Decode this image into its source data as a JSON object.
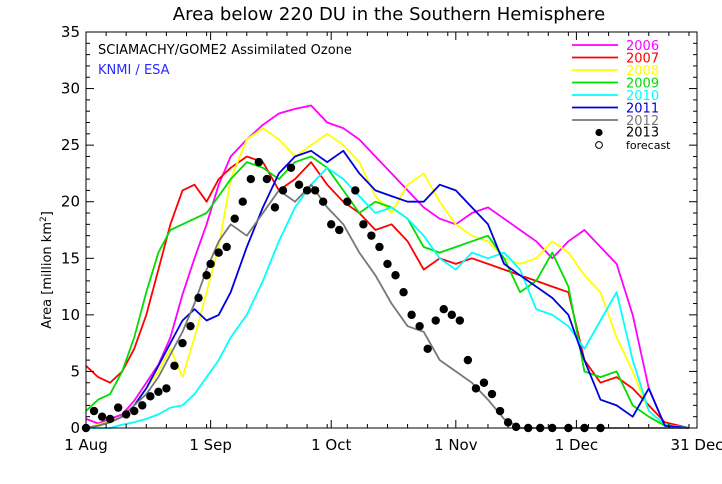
{
  "chart_data": {
    "type": "line",
    "title": "Area below 220 DU in the Southern Hemisphere",
    "ylabel": "Area [million km²]",
    "ylabel_main": "Area ",
    "ylabel_unit": "[million km",
    "ylabel_sup": "2",
    "ylabel_close": "]",
    "xlabel": "",
    "x_unit": "day of year",
    "xlim": [
      "1 Aug",
      "31 Dec"
    ],
    "ylim": [
      0,
      35
    ],
    "y_ticks": [
      "0",
      "5",
      "10",
      "15",
      "20",
      "25",
      "30",
      "35"
    ],
    "x_ticks": [
      "1 Aug",
      "1 Sep",
      "1 Oct",
      "1 Nov",
      "1 Dec",
      "31 Dec"
    ],
    "x_tick_days": [
      0,
      31,
      61,
      92,
      122,
      152
    ],
    "grid": false,
    "legend_position": "top-right",
    "annotations": [
      {
        "text": "SCIAMACHY/GOME2 Assimilated Ozone",
        "color": "#000000"
      },
      {
        "text": "KNMI / ESA",
        "color": "#2a2aff"
      }
    ],
    "series": [
      {
        "name": "2006",
        "color": "#ff00ff",
        "x": [
          0,
          3,
          6,
          9,
          12,
          15,
          18,
          21,
          24,
          27,
          30,
          33,
          36,
          40,
          44,
          48,
          52,
          56,
          60,
          64,
          68,
          72,
          76,
          80,
          84,
          88,
          92,
          96,
          100,
          104,
          108,
          112,
          116,
          120,
          124,
          128,
          132,
          136,
          140,
          144,
          150
        ],
        "y": [
          0.8,
          0.4,
          0.8,
          1.2,
          2.4,
          4.0,
          5.6,
          8.0,
          11.8,
          15.0,
          18.0,
          21.5,
          24.0,
          25.5,
          26.8,
          27.8,
          28.2,
          28.5,
          27.0,
          26.5,
          25.5,
          24.0,
          22.5,
          21.0,
          19.5,
          18.5,
          18.0,
          19.0,
          19.5,
          18.5,
          17.5,
          16.5,
          15.0,
          16.5,
          17.5,
          16.0,
          14.5,
          10.0,
          3.5,
          0.2,
          0.0
        ]
      },
      {
        "name": "2007",
        "color": "#ff0000",
        "x": [
          0,
          3,
          6,
          9,
          12,
          15,
          18,
          21,
          24,
          27,
          30,
          33,
          36,
          40,
          44,
          48,
          52,
          56,
          60,
          64,
          68,
          72,
          76,
          80,
          84,
          88,
          92,
          96,
          100,
          104,
          108,
          112,
          116,
          120,
          124,
          128,
          132,
          136,
          140,
          144,
          150
        ],
        "y": [
          5.5,
          4.5,
          4.0,
          5.0,
          7.0,
          10.0,
          14.0,
          18.0,
          21.0,
          21.5,
          20.0,
          22.0,
          23.0,
          24.0,
          23.5,
          21.0,
          22.0,
          23.5,
          21.5,
          20.0,
          19.0,
          17.5,
          18.0,
          16.5,
          14.0,
          15.0,
          14.5,
          15.0,
          14.5,
          14.0,
          13.5,
          13.0,
          12.5,
          12.0,
          6.0,
          4.0,
          4.5,
          3.5,
          2.0,
          0.5,
          0.0
        ]
      },
      {
        "name": "2008",
        "color": "#ffff00",
        "x": [
          0,
          3,
          6,
          9,
          12,
          15,
          18,
          21,
          24,
          27,
          30,
          33,
          36,
          40,
          44,
          48,
          52,
          56,
          60,
          64,
          68,
          72,
          76,
          80,
          84,
          88,
          92,
          96,
          100,
          104,
          108,
          112,
          116,
          120,
          124,
          128,
          132,
          136,
          140,
          144,
          150
        ],
        "y": [
          0.0,
          0.3,
          0.6,
          1.0,
          2.0,
          3.5,
          5.0,
          7.0,
          4.5,
          8.0,
          12.0,
          16.0,
          22.0,
          25.5,
          26.5,
          25.5,
          24.0,
          25.0,
          26.0,
          25.0,
          23.5,
          20.5,
          19.0,
          21.5,
          22.5,
          20.0,
          18.0,
          17.0,
          16.5,
          15.0,
          14.5,
          15.0,
          16.5,
          15.5,
          13.5,
          12.0,
          8.0,
          5.0,
          1.5,
          0.3,
          0.0
        ]
      },
      {
        "name": "2009",
        "color": "#00dd00",
        "x": [
          0,
          3,
          6,
          9,
          12,
          15,
          18,
          21,
          24,
          27,
          30,
          33,
          36,
          40,
          44,
          48,
          52,
          56,
          60,
          64,
          68,
          72,
          76,
          80,
          84,
          88,
          92,
          96,
          100,
          104,
          108,
          112,
          116,
          120,
          124,
          128,
          132,
          136,
          140,
          144,
          150
        ],
        "y": [
          1.5,
          2.5,
          3.0,
          5.0,
          8.0,
          12.0,
          15.5,
          17.5,
          18.0,
          18.5,
          19.0,
          20.5,
          22.0,
          23.5,
          23.0,
          22.0,
          23.5,
          24.0,
          23.0,
          21.0,
          19.0,
          20.0,
          19.5,
          18.5,
          16.0,
          15.5,
          16.0,
          16.5,
          17.0,
          15.0,
          12.0,
          13.0,
          15.5,
          12.5,
          5.0,
          4.5,
          5.0,
          2.0,
          1.0,
          0.2,
          0.0
        ]
      },
      {
        "name": "2010",
        "color": "#00ffff",
        "x": [
          0,
          3,
          6,
          9,
          12,
          15,
          18,
          21,
          24,
          27,
          30,
          33,
          36,
          40,
          44,
          48,
          52,
          56,
          60,
          64,
          68,
          72,
          76,
          80,
          84,
          88,
          92,
          96,
          100,
          104,
          108,
          112,
          116,
          120,
          124,
          128,
          132,
          136,
          140,
          144,
          150
        ],
        "y": [
          0.0,
          0.0,
          0.0,
          0.3,
          0.5,
          0.8,
          1.2,
          1.8,
          2.0,
          3.0,
          4.5,
          6.0,
          8.0,
          10.0,
          13.0,
          16.5,
          19.5,
          21.5,
          23.0,
          22.0,
          20.5,
          19.0,
          19.5,
          18.5,
          17.0,
          15.0,
          14.0,
          15.5,
          15.0,
          15.5,
          14.0,
          10.5,
          10.0,
          9.0,
          7.0,
          9.5,
          12.0,
          6.0,
          1.5,
          0.3,
          0.0
        ]
      },
      {
        "name": "2011",
        "color": "#0000dd",
        "x": [
          0,
          3,
          6,
          9,
          12,
          15,
          18,
          21,
          24,
          27,
          30,
          33,
          36,
          40,
          44,
          48,
          52,
          56,
          60,
          64,
          68,
          72,
          76,
          80,
          84,
          88,
          92,
          96,
          100,
          104,
          108,
          112,
          116,
          120,
          124,
          128,
          132,
          136,
          140,
          144,
          150
        ],
        "y": [
          0.0,
          0.2,
          0.5,
          1.0,
          2.0,
          3.5,
          5.5,
          7.5,
          9.5,
          10.5,
          9.5,
          10.0,
          12.0,
          16.0,
          19.5,
          22.5,
          24.0,
          24.5,
          23.5,
          24.5,
          22.5,
          21.0,
          20.5,
          20.0,
          20.0,
          21.5,
          21.0,
          19.5,
          18.0,
          14.5,
          13.5,
          12.5,
          11.5,
          10.0,
          6.0,
          2.5,
          2.0,
          1.0,
          3.5,
          0.2,
          0.0
        ]
      },
      {
        "name": "2012",
        "color": "#777777",
        "x": [
          0,
          3,
          6,
          9,
          12,
          15,
          18,
          21,
          24,
          27,
          30,
          33,
          36,
          40,
          44,
          48,
          52,
          56,
          60,
          64,
          68,
          72,
          76,
          80,
          84,
          88,
          92,
          96,
          100,
          104,
          108,
          150
        ],
        "y": [
          0.0,
          0.2,
          0.5,
          1.0,
          2.0,
          3.0,
          4.5,
          6.5,
          8.5,
          11.0,
          14.0,
          16.5,
          18.0,
          17.0,
          19.0,
          21.0,
          20.0,
          21.5,
          19.5,
          18.0,
          15.5,
          13.5,
          11.0,
          9.0,
          8.5,
          6.0,
          5.0,
          4.0,
          2.5,
          0.8,
          0.0,
          0.0
        ]
      },
      {
        "name": "2013",
        "color": "#000000",
        "style": "dots",
        "x": [
          0,
          2,
          4,
          6,
          8,
          10,
          12,
          14,
          16,
          18,
          20,
          22,
          24,
          26,
          28,
          30,
          31,
          33,
          35,
          37,
          39,
          41,
          43,
          45,
          47,
          49,
          51,
          53,
          55,
          57,
          59,
          61,
          63,
          65,
          67,
          69,
          71,
          73,
          75,
          77,
          79,
          81,
          83,
          85,
          87,
          89,
          91,
          93,
          95,
          97,
          99,
          101,
          103,
          105,
          107,
          110,
          113,
          116,
          120,
          124,
          128
        ],
        "y": [
          0.0,
          1.5,
          1.0,
          0.8,
          1.8,
          1.2,
          1.5,
          2.0,
          2.8,
          3.2,
          3.5,
          5.5,
          7.5,
          9.0,
          11.5,
          13.5,
          14.5,
          15.5,
          16.0,
          18.5,
          20.0,
          22.0,
          23.5,
          22.0,
          19.5,
          21.0,
          23.0,
          21.5,
          21.0,
          21.0,
          20.0,
          18.0,
          17.5,
          20.0,
          21.0,
          18.0,
          17.0,
          16.0,
          14.5,
          13.5,
          12.0,
          10.0,
          9.0,
          7.0,
          9.5,
          10.5,
          10.0,
          9.5,
          6.0,
          3.5,
          4.0,
          3.0,
          1.5,
          0.5,
          0.1,
          0.0,
          0.0,
          0.0,
          0.0,
          0.0,
          0.0
        ]
      }
    ],
    "legend_extra": [
      {
        "name": "2013",
        "marker": "filled-dot"
      },
      {
        "name": "forecast",
        "marker": "open-circle"
      }
    ]
  }
}
